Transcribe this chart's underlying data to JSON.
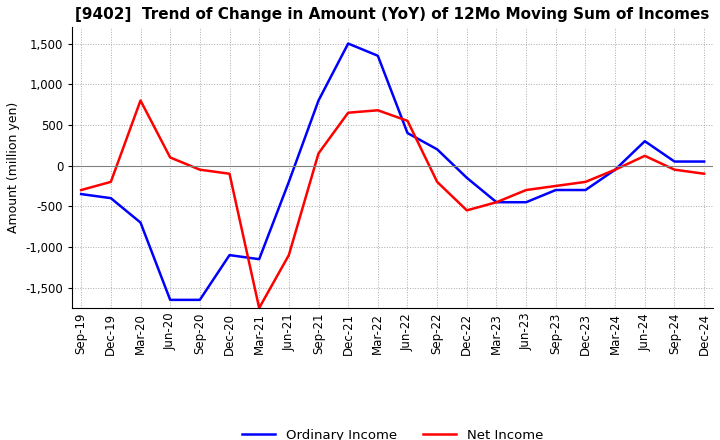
{
  "title": "[9402]  Trend of Change in Amount (YoY) of 12Mo Moving Sum of Incomes",
  "ylabel": "Amount (million yen)",
  "ylim": [
    -1750,
    1700
  ],
  "yticks": [
    -1500,
    -1000,
    -500,
    0,
    500,
    1000,
    1500
  ],
  "x_labels": [
    "Sep-19",
    "Dec-19",
    "Mar-20",
    "Jun-20",
    "Sep-20",
    "Dec-20",
    "Mar-21",
    "Jun-21",
    "Sep-21",
    "Dec-21",
    "Mar-22",
    "Jun-22",
    "Sep-22",
    "Dec-22",
    "Mar-23",
    "Jun-23",
    "Sep-23",
    "Dec-23",
    "Mar-24",
    "Jun-24",
    "Sep-24",
    "Dec-24"
  ],
  "ordinary_income": [
    -350,
    -400,
    -700,
    -1650,
    -1650,
    -1100,
    -1150,
    -200,
    800,
    1500,
    1350,
    400,
    200,
    -150,
    -450,
    -450,
    -300,
    -300,
    -50,
    300,
    50,
    50
  ],
  "net_income": [
    -300,
    -200,
    800,
    100,
    -50,
    -100,
    -1750,
    -1100,
    150,
    650,
    680,
    550,
    -200,
    -550,
    -450,
    -300,
    -250,
    -200,
    -50,
    120,
    -50,
    -100
  ],
  "ordinary_color": "#0000FF",
  "net_color": "#FF0000",
  "background_color": "#FFFFFF",
  "grid_color": "#AAAAAA",
  "title_fontsize": 11,
  "ylabel_fontsize": 9,
  "tick_fontsize": 8.5
}
